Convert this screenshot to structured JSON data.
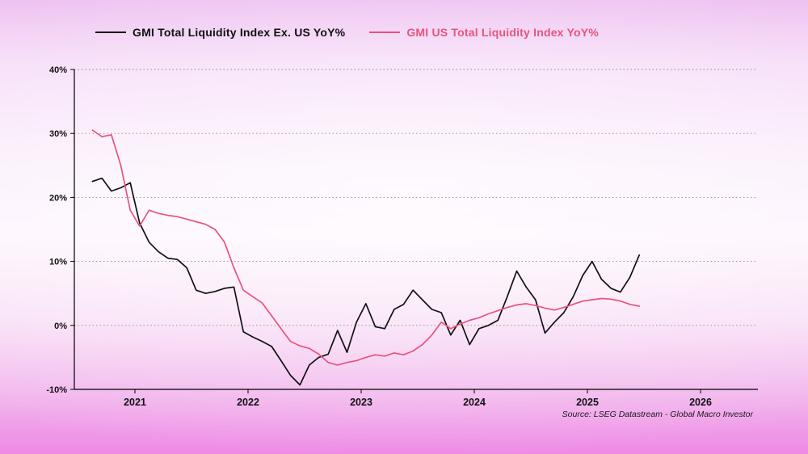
{
  "chart_data": {
    "type": "line",
    "title": "",
    "xlabel": "",
    "ylabel": "",
    "ylim": [
      -10,
      40
    ],
    "grid": "horizontal-dotted",
    "legend_position": "top",
    "x_start": "2020-08",
    "x_interval": "monthly",
    "y_ticks": [
      {
        "value": 40,
        "label": "40%"
      },
      {
        "value": 30,
        "label": "30%"
      },
      {
        "value": 20,
        "label": "20%"
      },
      {
        "value": 10,
        "label": "10%"
      },
      {
        "value": 0,
        "label": "0%"
      },
      {
        "value": -10,
        "label": "-10%"
      }
    ],
    "x_ticks": [
      {
        "value": 2021,
        "label": "2021"
      },
      {
        "value": 2022,
        "label": "2022"
      },
      {
        "value": 2023,
        "label": "2023"
      },
      {
        "value": 2024,
        "label": "2024"
      },
      {
        "value": 2025,
        "label": "2025"
      },
      {
        "value": 2026,
        "label": "2026"
      }
    ],
    "series": [
      {
        "id": "ex-us",
        "name": "GMI Total Liquidity Index Ex. US YoY%",
        "color": "#111111",
        "values": [
          22.5,
          23.0,
          21.0,
          21.5,
          22.3,
          16.0,
          13.0,
          11.5,
          10.5,
          10.3,
          9.0,
          5.5,
          5.0,
          5.3,
          5.8,
          6.0,
          -1.0,
          -1.8,
          -2.5,
          -3.3,
          -5.5,
          -7.8,
          -9.3,
          -6.2,
          -5.0,
          -4.5,
          -0.8,
          -4.2,
          0.5,
          3.4,
          -0.2,
          -0.5,
          2.5,
          3.3,
          5.5,
          4.0,
          2.5,
          2.0,
          -1.5,
          0.8,
          -3.0,
          -0.5,
          0.0,
          0.8,
          4.5,
          8.5,
          6.0,
          4.0,
          -1.2,
          0.5,
          2.0,
          4.5,
          7.8,
          10.0,
          7.2,
          5.8,
          5.2,
          7.5,
          11.0
        ]
      },
      {
        "id": "us",
        "name": "GMI US Total Liquidity Index YoY%",
        "color": "#e8537c",
        "values": [
          30.5,
          29.5,
          29.8,
          25.0,
          18.0,
          15.5,
          18.0,
          17.5,
          17.2,
          17.0,
          16.6,
          16.2,
          15.8,
          15.0,
          13.0,
          9.0,
          5.5,
          4.5,
          3.5,
          1.5,
          -0.5,
          -2.5,
          -3.2,
          -3.6,
          -4.5,
          -5.8,
          -6.2,
          -5.8,
          -5.5,
          -5.0,
          -4.6,
          -4.8,
          -4.3,
          -4.6,
          -4.0,
          -3.0,
          -1.5,
          0.5,
          -0.5,
          0.2,
          0.8,
          1.2,
          1.8,
          2.3,
          2.8,
          3.2,
          3.4,
          3.1,
          2.7,
          2.4,
          2.8,
          3.3,
          3.8,
          4.0,
          4.2,
          4.1,
          3.8,
          3.3,
          3.0
        ]
      }
    ],
    "source": "Source: LSEG Datastream - Global Macro Investor"
  }
}
